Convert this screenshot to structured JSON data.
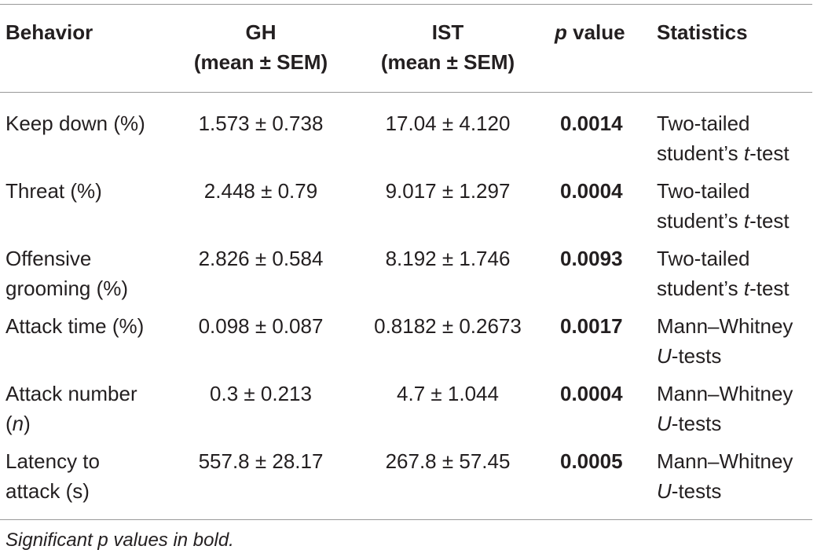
{
  "header": {
    "behavior": "Behavior",
    "gh_line1": "GH",
    "gh_line2": "(mean ± SEM)",
    "ist_line1": "IST",
    "ist_line2": "(mean ± SEM)",
    "p_italic": "p",
    "p_rest": " value",
    "statistics": "Statistics"
  },
  "rows": [
    {
      "behavior_1": "Keep down (%)",
      "gh": "1.573 ± 0.738",
      "ist": "17.04 ± 4.120",
      "p": "0.0014",
      "stat_1": "Two-tailed",
      "stat_2a": "student’s ",
      "stat_2i": "t",
      "stat_2b": "-test"
    },
    {
      "behavior_1": "Threat (%)",
      "gh": "2.448 ± 0.79",
      "ist": "9.017 ± 1.297",
      "p": "0.0004",
      "stat_1": "Two-tailed",
      "stat_2a": "student’s ",
      "stat_2i": "t",
      "stat_2b": "-test"
    },
    {
      "behavior_1": "Offensive",
      "behavior_2": "grooming (%)",
      "gh": "2.826 ± 0.584",
      "ist": "8.192 ± 1.746",
      "p": "0.0093",
      "stat_1": "Two-tailed",
      "stat_2a": "student’s ",
      "stat_2i": "t",
      "stat_2b": "-test"
    },
    {
      "behavior_1": "Attack time (%)",
      "gh": "0.098 ± 0.087",
      "ist": "0.8182 ± 0.2673",
      "p": "0.0017",
      "stat_1": "Mann–Whitney",
      "stat_2i": "U",
      "stat_2b": "-tests"
    },
    {
      "behavior_1": "Attack number",
      "behavior_2a": "(",
      "behavior_2i": "n",
      "behavior_2b": ")",
      "gh": "0.3 ± 0.213",
      "ist": "4.7 ± 1.044",
      "p": "0.0004",
      "stat_1": "Mann–Whitney",
      "stat_2i": "U",
      "stat_2b": "-tests"
    },
    {
      "behavior_1": "Latency to",
      "behavior_2": "attack (s)",
      "gh": "557.8 ± 28.17",
      "ist": "267.8 ± 57.45",
      "p": "0.0005",
      "stat_1": "Mann–Whitney",
      "stat_2i": "U",
      "stat_2b": "-tests"
    }
  ],
  "footnote": "Significant p values in bold."
}
